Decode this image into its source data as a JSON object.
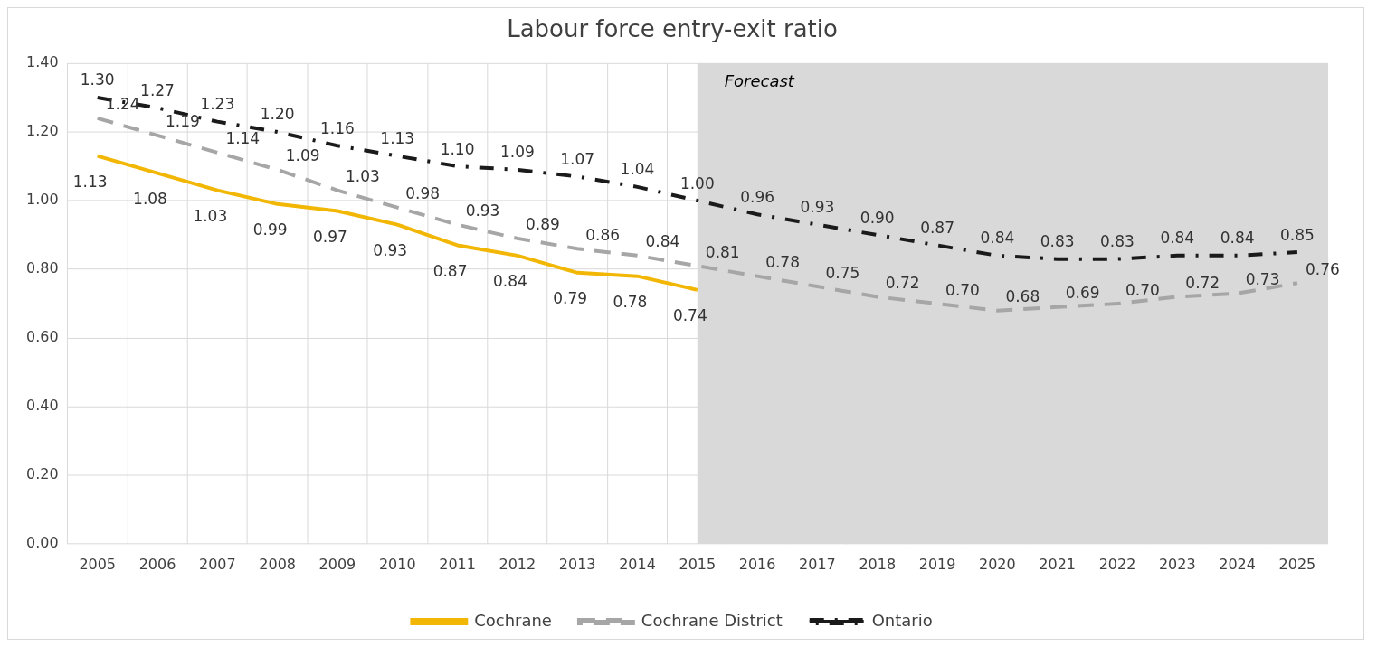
{
  "chart_data": {
    "type": "line",
    "title": "Labour force entry-exit ratio",
    "categories": [
      "2005",
      "2006",
      "2007",
      "2008",
      "2009",
      "2010",
      "2011",
      "2012",
      "2013",
      "2014",
      "2015",
      "2016",
      "2017",
      "2018",
      "2019",
      "2020",
      "2021",
      "2022",
      "2023",
      "2024",
      "2025"
    ],
    "series": [
      {
        "name": "Cochrane",
        "color": "#f2b705",
        "line_style": "solid",
        "values": [
          1.13,
          1.08,
          1.03,
          0.99,
          0.97,
          0.93,
          0.87,
          0.84,
          0.79,
          0.78,
          0.74,
          null,
          null,
          null,
          null,
          null,
          null,
          null,
          null,
          null,
          null
        ],
        "value_labels": [
          "1.13",
          "1.08",
          "1.03",
          "0.99",
          "0.97",
          "0.93",
          "0.87",
          "0.84",
          "0.79",
          "0.78",
          "0.74",
          null,
          null,
          null,
          null,
          null,
          null,
          null,
          null,
          null,
          null
        ]
      },
      {
        "name": "Cochrane District",
        "color": "#a6a6a6",
        "line_style": "dashed",
        "values": [
          1.24,
          1.19,
          1.14,
          1.09,
          1.03,
          0.98,
          0.93,
          0.89,
          0.86,
          0.84,
          0.81,
          0.78,
          0.75,
          0.72,
          0.7,
          0.68,
          0.69,
          0.7,
          0.72,
          0.73,
          0.76
        ],
        "value_labels": [
          "1.24",
          "1.19",
          "1.14",
          "1.09",
          "1.03",
          "0.98",
          "0.93",
          "0.89",
          "0.86",
          "0.84",
          "0.81",
          "0.78",
          "0.75",
          "0.72",
          "0.70",
          "0.68",
          "0.69",
          "0.70",
          "0.72",
          "0.73",
          "0.76"
        ]
      },
      {
        "name": "Ontario",
        "color": "#1a1a1a",
        "line_style": "dotted",
        "values": [
          1.3,
          1.27,
          1.23,
          1.2,
          1.16,
          1.13,
          1.1,
          1.09,
          1.07,
          1.04,
          1.0,
          0.96,
          0.93,
          0.9,
          0.87,
          0.84,
          0.83,
          0.83,
          0.84,
          0.84,
          0.85
        ],
        "value_labels": [
          "1.30",
          "1.27",
          "1.23",
          "1.20",
          "1.16",
          "1.13",
          "1.10",
          "1.09",
          "1.07",
          "1.04",
          "1.00",
          "0.96",
          "0.93",
          "0.90",
          "0.87",
          "0.84",
          "0.83",
          "0.83",
          "0.84",
          "0.84",
          "0.85"
        ]
      }
    ],
    "ylim": [
      0,
      1.4
    ],
    "yticks": [
      {
        "value": 0,
        "label": "0.00"
      },
      {
        "value": 0.2,
        "label": "0.20"
      },
      {
        "value": 0.4,
        "label": "0.40"
      },
      {
        "value": 0.6,
        "label": "0.60"
      },
      {
        "value": 0.8,
        "label": "0.80"
      },
      {
        "value": 1.0,
        "label": "1.00"
      },
      {
        "value": 1.2,
        "label": "1.20"
      },
      {
        "value": 1.4,
        "label": "1.40"
      }
    ],
    "grid": true,
    "legend": "bottom",
    "marker": "none",
    "bands": [
      {
        "axis": "x",
        "from": "2015",
        "to": "2025",
        "label": "Forecast",
        "color": "#d9d9d9"
      }
    ]
  }
}
